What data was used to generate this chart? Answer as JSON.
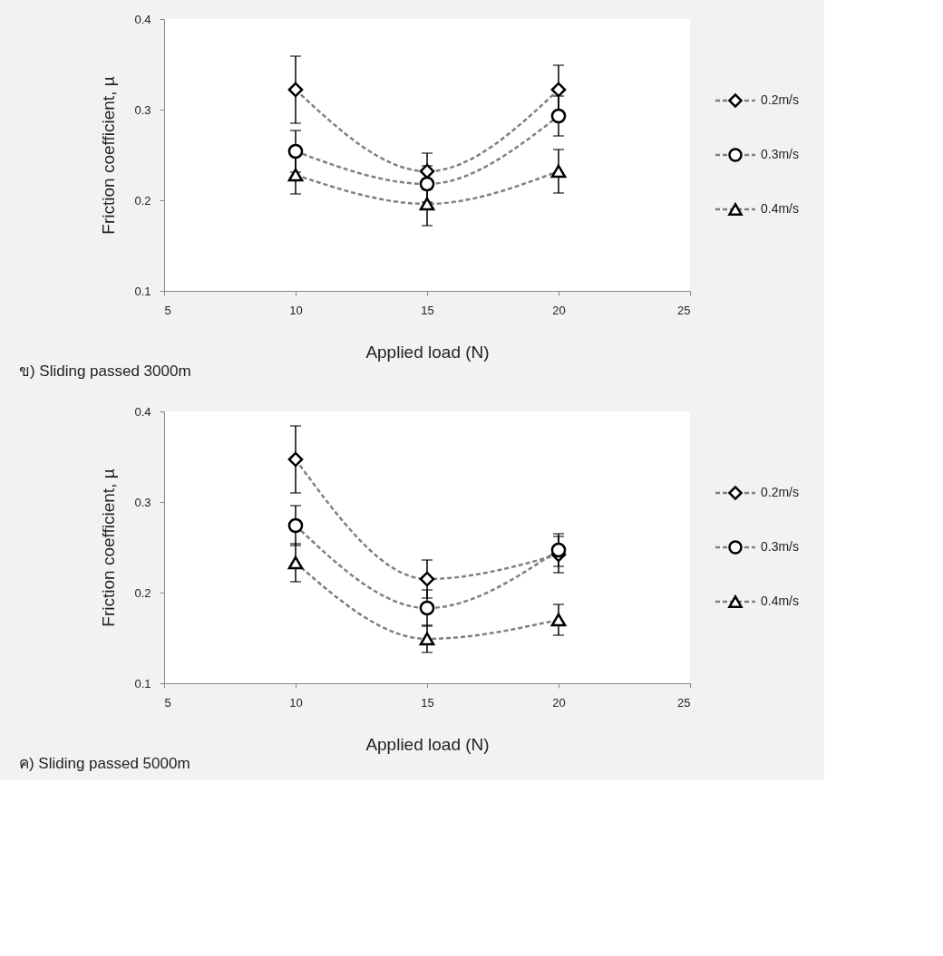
{
  "chart_data": [
    {
      "type": "line",
      "title": "ข) Sliding passed 3000m",
      "xlabel": "Applied load (N)",
      "ylabel": "Friction coefficient, µ",
      "x": [
        10,
        15,
        20
      ],
      "xlim": [
        5,
        25
      ],
      "xticks": [
        5,
        10,
        15,
        20,
        25
      ],
      "ylim": [
        0.1,
        0.4
      ],
      "yticks": [
        0.1,
        0.2,
        0.3,
        0.4
      ],
      "grid": false,
      "legend": "right",
      "line_style": "dashed",
      "series": [
        {
          "name": "0.2m/s",
          "color": "#808080",
          "marker": "diamond",
          "values": [
            0.322,
            0.232,
            0.322
          ],
          "errors": [
            0.037,
            0.02,
            0.027
          ]
        },
        {
          "name": "0.3m/s",
          "color": "#808080",
          "marker": "circle",
          "values": [
            0.254,
            0.218,
            0.293
          ],
          "errors": [
            0.023,
            0.02,
            0.022
          ]
        },
        {
          "name": "0.4m/s",
          "color": "#808080",
          "marker": "triangle",
          "values": [
            0.228,
            0.196,
            0.232
          ],
          "errors": [
            0.021,
            0.024,
            0.024
          ]
        }
      ]
    },
    {
      "type": "line",
      "title": "ค) Sliding passed 5000m",
      "xlabel": "Applied load (N)",
      "ylabel": "Friction coefficient, µ",
      "x": [
        10,
        15,
        20
      ],
      "xlim": [
        5,
        25
      ],
      "xticks": [
        5,
        10,
        15,
        20,
        25
      ],
      "ylim": [
        0.1,
        0.4
      ],
      "yticks": [
        0.1,
        0.2,
        0.3,
        0.4
      ],
      "grid": false,
      "legend": "right",
      "line_style": "dashed",
      "series": [
        {
          "name": "0.2m/s",
          "color": "#808080",
          "marker": "diamond",
          "values": [
            0.347,
            0.215,
            0.242
          ],
          "errors": [
            0.037,
            0.021,
            0.02
          ]
        },
        {
          "name": "0.3m/s",
          "color": "#808080",
          "marker": "circle",
          "values": [
            0.274,
            0.183,
            0.247
          ],
          "errors": [
            0.022,
            0.02,
            0.018
          ]
        },
        {
          "name": "0.4m/s",
          "color": "#808080",
          "marker": "triangle",
          "values": [
            0.233,
            0.149,
            0.17
          ],
          "errors": [
            0.021,
            0.015,
            0.017
          ]
        }
      ]
    }
  ]
}
